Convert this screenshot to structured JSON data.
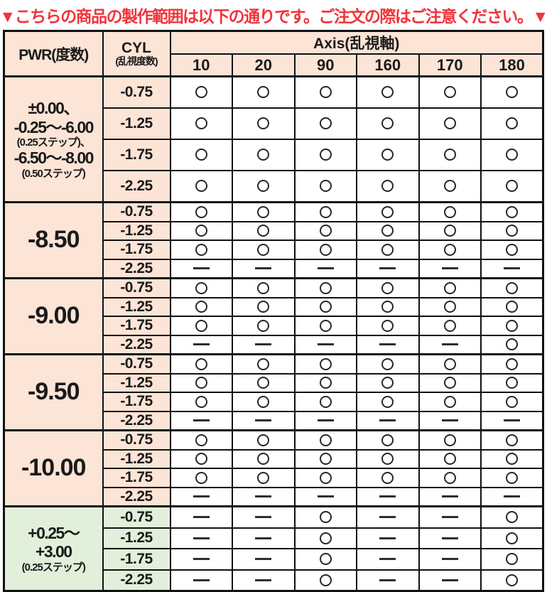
{
  "title": {
    "text": "▼こちらの商品の製作範囲は以下の通りです。ご注文の際はご注意ください。▼"
  },
  "colors": {
    "title_red": "#f2333a",
    "header_peach": "#fce4d6",
    "group_green": "#e2efda",
    "border": "#111111"
  },
  "symbols": {
    "available": "○",
    "unavailable": "—"
  },
  "table": {
    "header": {
      "pwr_label": "PWR(度数)",
      "cyl_label": "CYL",
      "cyl_sublabel": "(乱視度数)",
      "axis_label": "Axis(乱視軸)",
      "axis_columns": [
        "10",
        "20",
        "90",
        "160",
        "170",
        "180"
      ]
    },
    "groups": [
      {
        "pwr_lines": [
          {
            "text": "±0.00、",
            "small": false
          },
          {
            "text": "-0.25〜-6.00",
            "small": false
          },
          {
            "text": "(0.25ステップ)、",
            "small": true
          },
          {
            "text": "-6.50〜-8.00",
            "small": false
          },
          {
            "text": "(0.50ステップ)",
            "small": true
          }
        ],
        "pwr_size": "large",
        "pwr_bg": "peach",
        "row_size": "tall",
        "rows": [
          {
            "cyl": "-0.75",
            "cells": [
              "○",
              "○",
              "○",
              "○",
              "○",
              "○"
            ]
          },
          {
            "cyl": "-1.25",
            "cells": [
              "○",
              "○",
              "○",
              "○",
              "○",
              "○"
            ]
          },
          {
            "cyl": "-1.75",
            "cells": [
              "○",
              "○",
              "○",
              "○",
              "○",
              "○"
            ]
          },
          {
            "cyl": "-2.25",
            "cells": [
              "○",
              "○",
              "○",
              "○",
              "○",
              "○"
            ]
          }
        ]
      },
      {
        "pwr_lines": [
          {
            "text": "-8.50",
            "small": false
          }
        ],
        "pwr_size": "xlarge",
        "pwr_bg": "peach",
        "row_size": "short",
        "rows": [
          {
            "cyl": "-0.75",
            "cells": [
              "○",
              "○",
              "○",
              "○",
              "○",
              "○"
            ]
          },
          {
            "cyl": "-1.25",
            "cells": [
              "○",
              "○",
              "○",
              "○",
              "○",
              "○"
            ]
          },
          {
            "cyl": "-1.75",
            "cells": [
              "○",
              "○",
              "○",
              "○",
              "○",
              "○"
            ]
          },
          {
            "cyl": "-2.25",
            "cells": [
              "—",
              "—",
              "—",
              "—",
              "—",
              "—"
            ]
          }
        ]
      },
      {
        "pwr_lines": [
          {
            "text": "-9.00",
            "small": false
          }
        ],
        "pwr_size": "xlarge",
        "pwr_bg": "peach",
        "row_size": "short",
        "rows": [
          {
            "cyl": "-0.75",
            "cells": [
              "○",
              "○",
              "○",
              "○",
              "○",
              "○"
            ]
          },
          {
            "cyl": "-1.25",
            "cells": [
              "○",
              "○",
              "○",
              "○",
              "○",
              "○"
            ]
          },
          {
            "cyl": "-1.75",
            "cells": [
              "○",
              "○",
              "○",
              "○",
              "○",
              "○"
            ]
          },
          {
            "cyl": "-2.25",
            "cells": [
              "—",
              "—",
              "—",
              "—",
              "—",
              "○"
            ]
          }
        ]
      },
      {
        "pwr_lines": [
          {
            "text": "-9.50",
            "small": false
          }
        ],
        "pwr_size": "xlarge",
        "pwr_bg": "peach",
        "row_size": "short",
        "rows": [
          {
            "cyl": "-0.75",
            "cells": [
              "○",
              "○",
              "○",
              "○",
              "○",
              "○"
            ]
          },
          {
            "cyl": "-1.25",
            "cells": [
              "○",
              "○",
              "○",
              "○",
              "○",
              "○"
            ]
          },
          {
            "cyl": "-1.75",
            "cells": [
              "○",
              "○",
              "○",
              "○",
              "○",
              "○"
            ]
          },
          {
            "cyl": "-2.25",
            "cells": [
              "—",
              "—",
              "—",
              "—",
              "—",
              "—"
            ]
          }
        ]
      },
      {
        "pwr_lines": [
          {
            "text": "-10.00",
            "small": false
          }
        ],
        "pwr_size": "xlarge",
        "pwr_bg": "peach",
        "row_size": "short",
        "rows": [
          {
            "cyl": "-0.75",
            "cells": [
              "○",
              "○",
              "○",
              "○",
              "○",
              "○"
            ]
          },
          {
            "cyl": "-1.25",
            "cells": [
              "○",
              "○",
              "○",
              "○",
              "○",
              "○"
            ]
          },
          {
            "cyl": "-1.75",
            "cells": [
              "○",
              "○",
              "○",
              "○",
              "○",
              "○"
            ]
          },
          {
            "cyl": "-2.25",
            "cells": [
              "—",
              "—",
              "—",
              "—",
              "—",
              "—"
            ]
          }
        ]
      },
      {
        "pwr_lines": [
          {
            "text": "+0.25〜",
            "small": false
          },
          {
            "text": "+3.00",
            "small": false
          },
          {
            "text": "(0.25ステップ)",
            "small": true
          }
        ],
        "pwr_size": "large",
        "pwr_bg": "green",
        "row_size": "mid",
        "rows": [
          {
            "cyl": "-0.75",
            "cells": [
              "—",
              "—",
              "○",
              "—",
              "—",
              "○"
            ]
          },
          {
            "cyl": "-1.25",
            "cells": [
              "—",
              "—",
              "○",
              "—",
              "—",
              "○"
            ]
          },
          {
            "cyl": "-1.75",
            "cells": [
              "—",
              "—",
              "○",
              "—",
              "—",
              "○"
            ]
          },
          {
            "cyl": "-2.25",
            "cells": [
              "—",
              "—",
              "○",
              "—",
              "—",
              "○"
            ]
          }
        ]
      }
    ]
  }
}
